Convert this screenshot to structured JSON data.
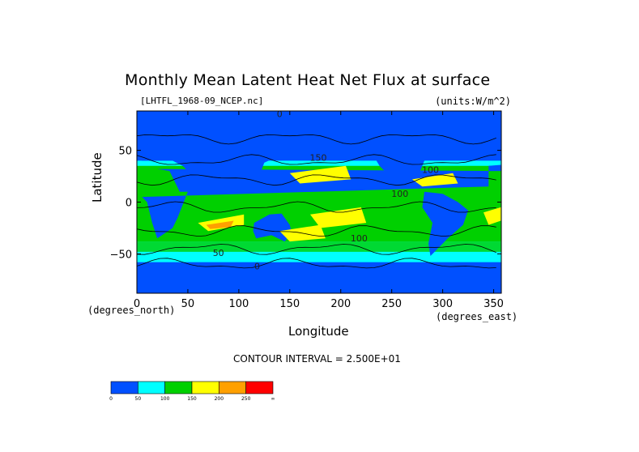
{
  "chart_data": {
    "type": "heatmap",
    "title": "Monthly Mean Latent Heat Net Flux at surface",
    "file_label": "[LHTFL_1968-09_NCEP.nc]",
    "units_label": "(units:W/m^2)",
    "xlabel": "Longitude",
    "ylabel": "Latitude",
    "x_units_label": "(degrees_east)",
    "y_units_label": "(degrees_north)",
    "xlim": [
      0,
      357.5
    ],
    "ylim": [
      -88,
      88
    ],
    "x_ticks": [
      0,
      50,
      100,
      150,
      200,
      250,
      300,
      350
    ],
    "y_ticks": [
      -50,
      0,
      50
    ],
    "contour_interval_text": "CONTOUR INTERVAL = 2.500E+01",
    "colorbar": {
      "levels": [
        "0",
        "50",
        "100",
        "150",
        "200",
        "250",
        "∞"
      ],
      "colors": [
        "#0050ff",
        "#00ffff",
        "#00d000",
        "#ffff00",
        "#ffa000",
        "#ff0000"
      ]
    },
    "contour_labels": [
      {
        "text": "0",
        "lon": 140,
        "lat": 82
      },
      {
        "text": "150",
        "lon": 178,
        "lat": 40
      },
      {
        "text": "100",
        "lon": 258,
        "lat": 5
      },
      {
        "text": "100",
        "lon": 288,
        "lat": 28
      },
      {
        "text": "100",
        "lon": 218,
        "lat": -38
      },
      {
        "text": "50",
        "lon": 80,
        "lat": -52
      },
      {
        "text": "0",
        "lon": 118,
        "lat": -65
      }
    ]
  }
}
